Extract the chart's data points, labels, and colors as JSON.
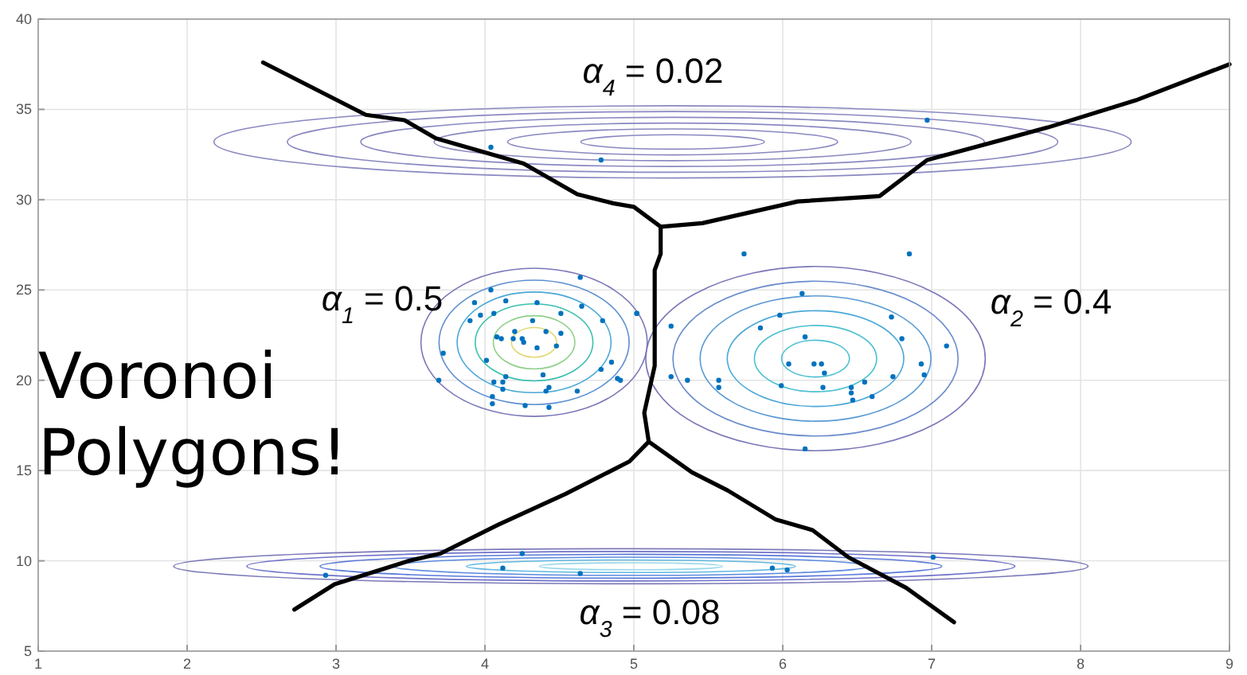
{
  "chart_data": {
    "type": "scatter",
    "xlim": [
      1,
      9
    ],
    "ylim": [
      5,
      40
    ],
    "xticks": [
      1,
      2,
      3,
      4,
      5,
      6,
      7,
      8,
      9
    ],
    "yticks": [
      5,
      10,
      15,
      20,
      25,
      30,
      35,
      40
    ],
    "grid": true,
    "line_style": "solid",
    "annotations": [
      "α$_{1}$ = 0.5",
      "α$_{2}$ = 0.4",
      "α$_{3}$ = 0.08",
      "α$_{4}$ = 0.02",
      "Voronoi Polygons!"
    ],
    "series": [
      {
        "type": "line",
        "color": "#000000",
        "x": [
          2.51,
          3.2,
          3.46,
          3.67,
          4.26,
          4.62,
          4.86,
          5.0,
          5.18
        ],
        "values": [
          37.6,
          34.7,
          34.4,
          33.4,
          32.0,
          30.3,
          29.8,
          29.6,
          28.5
        ]
      },
      {
        "type": "line",
        "color": "#000000",
        "x": [
          5.18,
          5.46,
          6.1,
          6.65,
          6.97,
          7.78,
          8.37,
          9.0
        ],
        "values": [
          28.5,
          28.7,
          29.9,
          30.2,
          32.2,
          34.0,
          35.5,
          37.5
        ]
      },
      {
        "type": "line",
        "color": "#000000",
        "x": [
          5.18,
          5.18,
          5.14,
          5.14,
          5.07,
          5.1
        ],
        "values": [
          28.5,
          27.0,
          26.1,
          20.8,
          18.2,
          16.6
        ]
      },
      {
        "type": "line",
        "color": "#000000",
        "x": [
          5.1,
          4.97,
          4.54,
          4.09,
          3.7,
          3.49,
          2.99,
          2.72
        ],
        "values": [
          16.6,
          15.5,
          13.7,
          12.0,
          10.4,
          10.0,
          8.7,
          7.3
        ]
      },
      {
        "type": "line",
        "color": "#000000",
        "x": [
          5.1,
          5.39,
          5.63,
          5.95,
          6.2,
          6.44,
          6.83,
          7.15
        ],
        "values": [
          16.6,
          14.9,
          13.9,
          12.3,
          11.7,
          10.2,
          8.5,
          6.6
        ]
      },
      {
        "color": "#0072bd",
        "marker": "circle",
        "x": [
          4.04,
          4.78,
          6.97,
          2.93,
          4.25,
          4.12,
          4.64,
          5.93,
          6.03,
          7.01,
          5.74,
          6.85,
          6.13,
          5.02,
          5.25,
          5.98,
          6.73,
          5.85,
          6.15,
          6.8,
          7.1,
          6.04,
          6.21,
          6.26,
          6.28,
          6.93,
          5.25,
          5.36,
          5.57,
          5.57,
          5.99,
          6.27,
          6.55,
          6.74,
          6.95,
          6.46,
          6.46,
          6.6,
          6.47,
          6.15,
          4.64,
          4.04,
          3.93,
          4.14,
          4.35,
          4.65,
          4.06,
          4.51,
          3.9,
          3.97,
          4.79,
          4.32,
          5.02,
          4.2,
          4.41,
          4.08,
          4.11,
          4.19,
          4.25,
          4.51,
          4.48,
          4.26,
          4.35,
          3.72,
          4.01,
          4.85,
          4.78,
          4.39,
          4.14,
          4.06,
          4.12,
          4.89,
          4.91,
          3.69,
          4.43,
          4.41,
          4.12,
          4.05,
          4.62,
          4.05,
          4.27,
          4.43
        ],
        "values": [
          32.9,
          32.2,
          34.4,
          9.2,
          10.4,
          9.6,
          9.3,
          9.6,
          9.5,
          10.2,
          27.0,
          27.0,
          24.8,
          23.7,
          23.0,
          23.6,
          23.5,
          22.9,
          22.4,
          22.3,
          21.9,
          20.9,
          20.9,
          20.9,
          20.4,
          20.9,
          20.2,
          20.0,
          20.0,
          19.6,
          19.7,
          19.6,
          19.9,
          20.2,
          20.3,
          19.6,
          19.3,
          19.1,
          18.9,
          16.2,
          25.7,
          25.0,
          24.3,
          24.4,
          24.3,
          24.1,
          23.7,
          23.7,
          23.3,
          23.6,
          23.3,
          23.3,
          23.7,
          22.7,
          22.7,
          22.4,
          22.3,
          22.3,
          22.3,
          22.6,
          21.9,
          22.1,
          21.8,
          21.5,
          21.1,
          21.0,
          20.6,
          20.3,
          20.2,
          19.9,
          19.9,
          20.1,
          20.0,
          20.0,
          19.6,
          19.4,
          19.5,
          19.1,
          19.4,
          18.7,
          18.6,
          18.5
        ]
      }
    ]
  }
}
